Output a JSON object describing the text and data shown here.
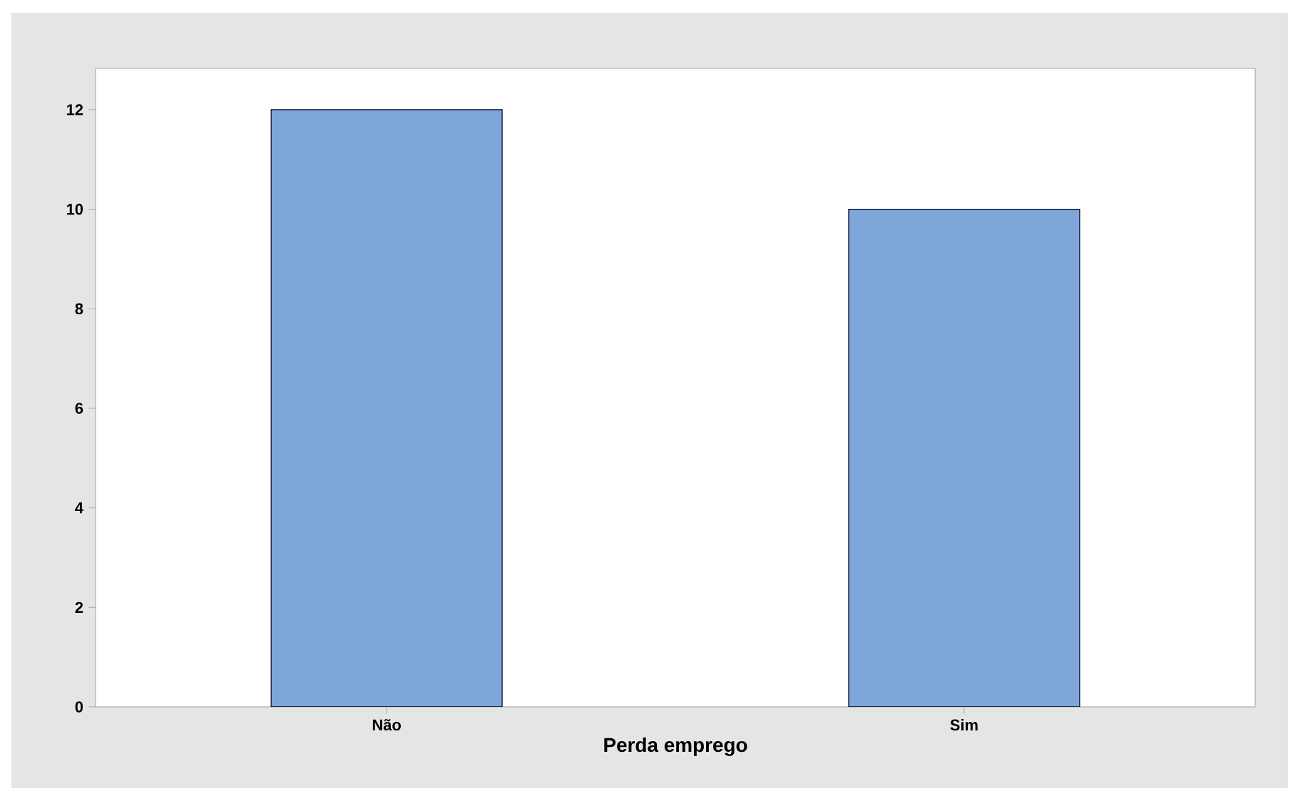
{
  "chart_data": {
    "type": "bar",
    "xlabel": "Perda emprego",
    "categories": [
      "Não",
      "Sim"
    ],
    "values": [
      12,
      10
    ],
    "color": "#7ea6d8",
    "ylim": [
      0,
      12.83
    ],
    "yticks": [
      0,
      2,
      4,
      6,
      8,
      10,
      12
    ],
    "grid": false
  }
}
